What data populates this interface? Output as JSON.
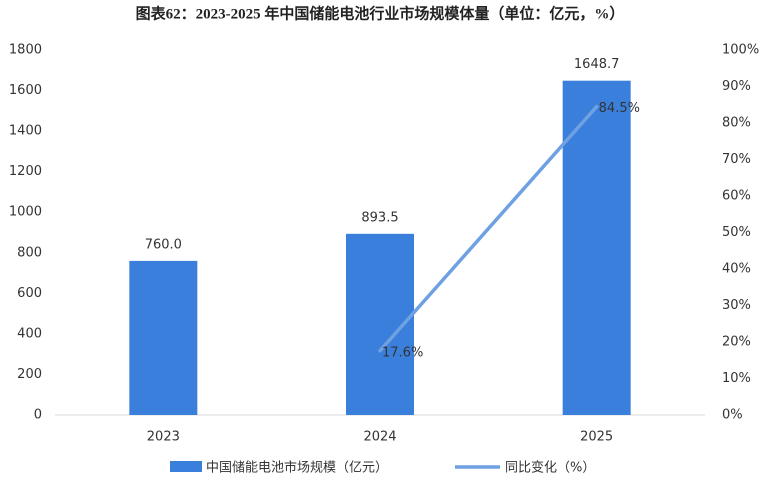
{
  "chart_data": {
    "type": "bar",
    "title": "图表62：2023-2025 年中国储能电池行业市场规模体量（单位：亿元，%）",
    "categories": [
      "2023",
      "2024",
      "2025"
    ],
    "series": [
      {
        "name": "中国储能电池市场规模（亿元）",
        "type": "bar",
        "color": "#3b7fdc",
        "values": [
          760.0,
          893.5,
          1648.7
        ],
        "value_labels": [
          "760.0",
          "893.5",
          "1648.7"
        ]
      },
      {
        "name": "同比变化（%）",
        "type": "line",
        "axis": "y2",
        "color": "#6fa0e2",
        "values": [
          null,
          17.6,
          84.5
        ],
        "value_labels": [
          null,
          "17.6%",
          "84.5%"
        ]
      }
    ],
    "ylim": [
      0,
      1800
    ],
    "yticks": [
      0,
      200,
      400,
      600,
      800,
      1000,
      1200,
      1400,
      1600,
      1800
    ],
    "y2lim": [
      0,
      100
    ],
    "y2ticks": [
      {
        "value": 0,
        "label": "0%"
      },
      {
        "value": 10,
        "label": "10%"
      },
      {
        "value": 20,
        "label": "20%"
      },
      {
        "value": 30,
        "label": "30%"
      },
      {
        "value": 40,
        "label": "40%"
      },
      {
        "value": 50,
        "label": "50%"
      },
      {
        "value": 60,
        "label": "60%"
      },
      {
        "value": 70,
        "label": "70%"
      },
      {
        "value": 80,
        "label": "80%"
      },
      {
        "value": 90,
        "label": "90%"
      },
      {
        "value": 100,
        "label": "100%"
      }
    ],
    "grid": false,
    "legend": "bottom"
  }
}
